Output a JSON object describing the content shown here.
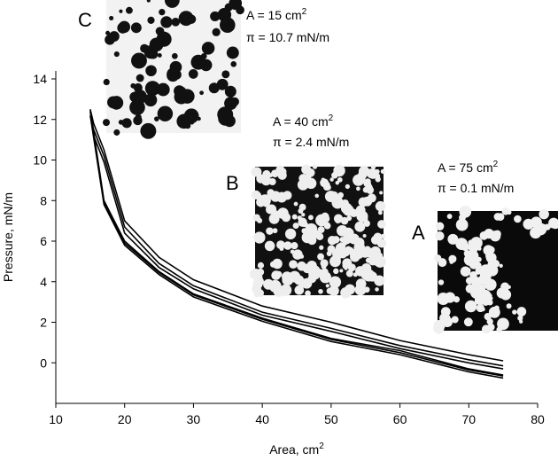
{
  "chart_data": {
    "type": "line",
    "xlabel": {
      "text": "Area, cm",
      "sup": "2"
    },
    "ylabel": "Pressure, mN/m",
    "xlim": [
      10,
      80
    ],
    "xticks": [
      10,
      20,
      30,
      40,
      50,
      60,
      70,
      80
    ],
    "ylim": [
      -2,
      14
    ],
    "yticks": [
      0,
      2,
      4,
      6,
      8,
      10,
      12,
      14
    ],
    "series": [
      {
        "color": "#000000",
        "x": [
          75,
          70,
          60,
          50,
          40,
          30,
          25,
          20,
          17,
          15,
          15.5,
          17,
          20,
          25,
          30,
          40,
          50,
          60,
          70,
          75
        ],
        "values": [
          -0.6,
          -0.3,
          0.6,
          1.2,
          2.2,
          3.4,
          4.5,
          6.0,
          8.0,
          12.5,
          11.8,
          10.5,
          7.0,
          5.2,
          4.1,
          2.8,
          2.0,
          1.1,
          0.4,
          0.1
        ]
      },
      {
        "color": "#000000",
        "x": [
          75,
          70,
          60,
          50,
          40,
          30,
          25,
          20,
          17,
          15,
          15.5,
          17,
          20,
          25,
          30,
          40,
          50,
          60,
          70,
          75
        ],
        "values": [
          -0.75,
          -0.45,
          0.4,
          1.05,
          2.05,
          3.25,
          4.35,
          5.8,
          7.8,
          12.2,
          11.5,
          10.2,
          6.7,
          4.9,
          3.8,
          2.5,
          1.7,
          0.85,
          0.15,
          -0.15
        ]
      },
      {
        "color": "#000000",
        "x": [
          75,
          70,
          60,
          50,
          40,
          30,
          25,
          20,
          17,
          15,
          15.5,
          17,
          20,
          25,
          30,
          40,
          50,
          60,
          70,
          75
        ],
        "values": [
          -0.65,
          -0.35,
          0.5,
          1.15,
          2.15,
          3.35,
          4.45,
          5.9,
          7.9,
          12.4,
          11.2,
          9.9,
          6.4,
          4.7,
          3.65,
          2.35,
          1.55,
          0.7,
          0.0,
          -0.3
        ]
      }
    ],
    "insets": [
      {
        "letter": "C",
        "area": {
          "text": "A = 15 cm",
          "sup": "2"
        },
        "pressure": "π = 10.7 mN/m"
      },
      {
        "letter": "B",
        "area": {
          "text": "A = 40 cm",
          "sup": "2"
        },
        "pressure": "π = 2.4 mN/m"
      },
      {
        "letter": "A",
        "area": {
          "text": "A = 75 cm",
          "sup": "2"
        },
        "pressure": "π = 0.1 mN/m"
      }
    ]
  }
}
